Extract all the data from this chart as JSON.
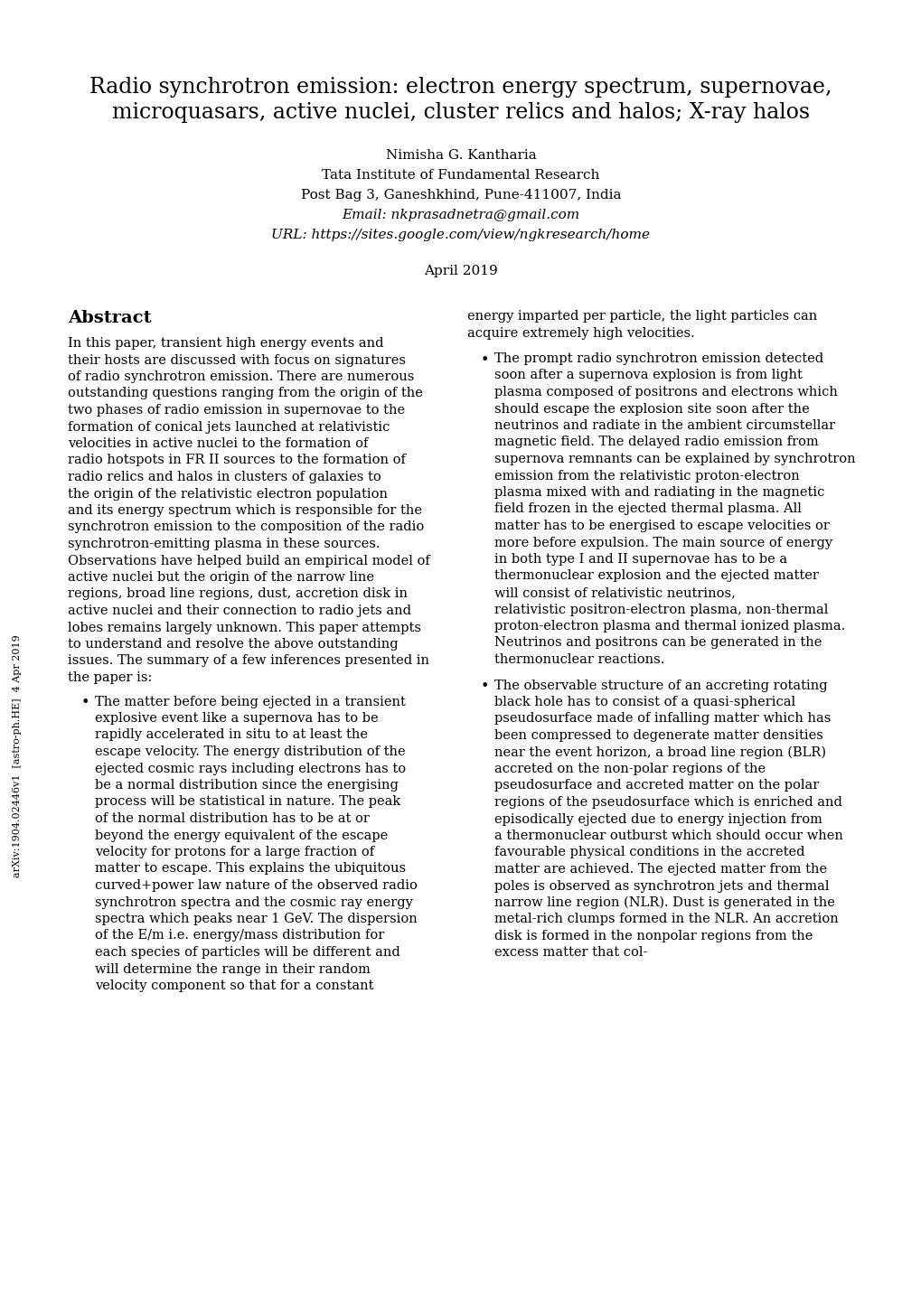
{
  "title_line1": "Radio synchrotron emission: electron energy spectrum, supernovae,",
  "title_line2": "microquasars, active nuclei, cluster relics and halos; X-ray halos",
  "author": "Nimisha G. Kantharia",
  "institute": "Tata Institute of Fundamental Research",
  "address": "Post Bag 3, Ganeshkhind, Pune-411007, India",
  "email_label": "Email: ",
  "email": "nkprasadnetra@gmail.com",
  "url_label": "URL: ",
  "url": "https://sites.google.com/view/ngkresearch/home",
  "date": "April 2019",
  "arxiv_label": "arXiv:1904.02446v1  [astro-ph.HE]  4 Apr 2019",
  "abstract_title": "Abstract",
  "abstract_intro": "In this paper, transient high energy events and their hosts are discussed with focus on signatures of radio synchrotron emission.  There are numerous outstanding questions ranging from the origin of the two phases of radio emission in supernovae to the formation of conical jets launched at relativistic velocities in active nuclei to the formation of radio hotspots in FR II sources to the formation of radio relics and halos in clusters of galaxies to the origin of the relativistic electron population and its energy spectrum which is responsible for the synchrotron emission to the composition of the radio synchrotron-emitting plasma in these sources.  Observations have helped build an empirical model of active nuclei but the origin of the narrow line regions, broad line regions, dust, accretion disk in active nuclei and their connection to radio jets and lobes remains largely unknown. This paper attempts to understand and resolve the above outstanding issues.  The summary of a few inferences presented in the paper is:",
  "bullet1_left": "The matter before being ejected in a transient explosive event like a supernova has to be rapidly accelerated in situ to at least the escape velocity.  The energy distribution of the ejected cosmic rays including electrons has to be a normal distribution since the energising process will be statistical in nature.  The peak of the normal distribution has to be at or beyond the energy equivalent of the escape velocity for protons for a large fraction of matter to escape.  This explains the ubiquitous curved+power law nature of the observed radio synchrotron spectra and the cosmic ray energy spectra which peaks near 1 GeV. The dispersion of the E/m i.e. energy/mass distribution for each species of particles will be different and will determine the range in their random velocity component so that for a constant",
  "bullet1_right": "energy imparted per particle, the light particles can acquire extremely high velocities.",
  "bullet2": "The prompt radio synchrotron emission detected soon after a supernova explosion is from light plasma composed of positrons and electrons which should escape the explosion site soon after the neutrinos and radiate in the ambient circumstellar magnetic field.  The delayed radio emission from supernova remnants can be explained by synchrotron emission from the relativistic proton-electron plasma mixed with and radiating in the magnetic field frozen in the ejected thermal plasma.  All matter has to be energised to escape velocities or more before expulsion. The main source of energy in both type I and II supernovae has to be a thermonuclear explosion and the ejected matter will consist of relativistic neutrinos, relativistic positron-electron plasma, non-thermal proton-electron plasma and thermal ionized plasma.  Neutrinos and positrons can be generated in the thermonuclear reactions.",
  "bullet3": "The observable structure of an accreting rotating black hole has to consist of a quasi-spherical pseudosurface made of infalling matter which has been compressed to degenerate matter densities near the event horizon, a broad line region (BLR) accreted on the non-polar regions of the pseudosurface and accreted matter on the polar regions of the pseudosurface which is enriched and episodically ejected due to energy injection from a thermonuclear outburst which should occur when favourable physical conditions in the accreted matter are achieved.  The ejected matter from the poles is observed as synchrotron jets and thermal narrow line region (NLR). Dust is generated in the metal-rich clumps formed in the NLR.  An accretion disk is formed in the nonpolar regions from the excess matter that col-",
  "bg_color": "#ffffff",
  "text_color": "#000000",
  "title_fontsize": 17,
  "body_fontsize": 10.5,
  "abstract_title_fontsize": 14,
  "header_fontsize": 11
}
